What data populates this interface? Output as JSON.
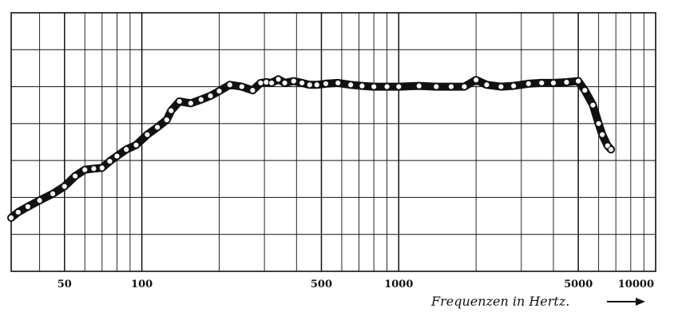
{
  "chart_data": {
    "type": "line",
    "title": "",
    "xlabel": "Frequenzen in Hertz.",
    "ylabel": "",
    "x_scale": "log",
    "xlim": [
      31,
      10000
    ],
    "ylim": [
      0,
      7
    ],
    "grid": true,
    "x_tick_labels": [
      {
        "value": 50,
        "label": "50"
      },
      {
        "value": 100,
        "label": "100"
      },
      {
        "value": 500,
        "label": "500"
      },
      {
        "value": 1000,
        "label": "1000"
      },
      {
        "value": 5000,
        "label": "5000"
      },
      {
        "value": 10000,
        "label": "10000"
      }
    ],
    "series": [
      {
        "x": [
          31,
          33,
          36,
          40,
          45,
          50,
          55,
          60,
          65,
          70,
          75,
          80,
          87,
          95,
          105,
          115,
          125,
          130,
          140,
          155,
          170,
          185,
          200,
          220,
          245,
          270,
          290,
          305,
          320,
          340,
          360,
          390,
          420,
          450,
          480,
          520,
          580,
          650,
          720,
          800,
          900,
          1000,
          1200,
          1400,
          1600,
          1800,
          2000,
          2200,
          2500,
          2800,
          3200,
          3600,
          4000,
          4500,
          5000,
          5300,
          5700,
          6000,
          6200,
          6500,
          6700
        ],
        "y": [
          1.45,
          1.6,
          1.75,
          1.92,
          2.1,
          2.3,
          2.58,
          2.75,
          2.78,
          2.8,
          2.98,
          3.12,
          3.3,
          3.42,
          3.7,
          3.9,
          4.1,
          4.35,
          4.6,
          4.55,
          4.65,
          4.75,
          4.88,
          5.05,
          5.0,
          4.9,
          5.1,
          5.12,
          5.1,
          5.2,
          5.1,
          5.15,
          5.1,
          5.05,
          5.05,
          5.08,
          5.1,
          5.05,
          5.02,
          5.0,
          5.0,
          5.0,
          5.02,
          5.0,
          5.0,
          5.0,
          5.18,
          5.05,
          5.0,
          5.02,
          5.08,
          5.1,
          5.1,
          5.12,
          5.15,
          4.9,
          4.5,
          4.0,
          3.7,
          3.4,
          3.3
        ]
      }
    ]
  }
}
